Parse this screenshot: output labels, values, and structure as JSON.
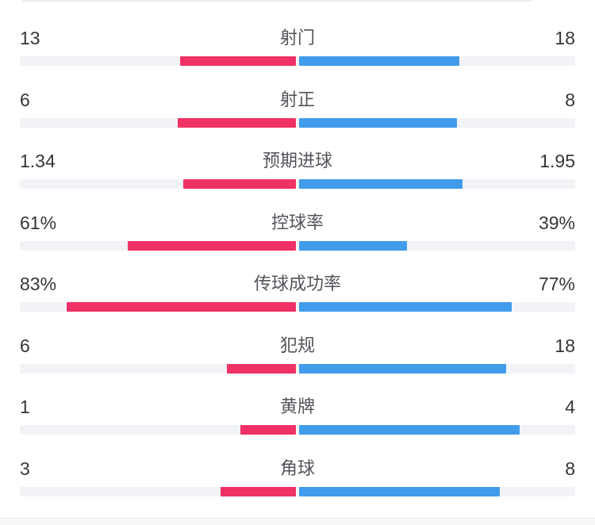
{
  "colors": {
    "home": "#EF3166",
    "away": "#419CEC",
    "track": "#F2F3F6",
    "value_text": "#35363B",
    "label_text": "#54555B",
    "hairline": "#EBECEF",
    "footer": "#F7F8FA"
  },
  "rows": [
    {
      "label": "射门",
      "left": "13",
      "right": "18",
      "left_pct": 41.94,
      "right_pct": 58.06
    },
    {
      "label": "射正",
      "left": "6",
      "right": "8",
      "left_pct": 42.86,
      "right_pct": 57.14
    },
    {
      "label": "预期进球",
      "left": "1.34",
      "right": "1.95",
      "left_pct": 40.73,
      "right_pct": 59.27
    },
    {
      "label": "控球率",
      "left": "61%",
      "right": "39%",
      "left_pct": 61,
      "right_pct": 39
    },
    {
      "label": "传球成功率",
      "left": "83%",
      "right": "77%",
      "left_pct": 83,
      "right_pct": 77
    },
    {
      "label": "犯规",
      "left": "6",
      "right": "18",
      "left_pct": 25,
      "right_pct": 75
    },
    {
      "label": "黄牌",
      "left": "1",
      "right": "4",
      "left_pct": 20,
      "right_pct": 80
    },
    {
      "label": "角球",
      "left": "3",
      "right": "8",
      "left_pct": 27.27,
      "right_pct": 72.73
    }
  ],
  "chart_data": {
    "type": "bar",
    "orientation": "paired-horizontal-from-center",
    "categories": [
      "射门",
      "射正",
      "预期进球",
      "控球率",
      "传球成功率",
      "犯规",
      "黄牌",
      "角球"
    ],
    "series": [
      {
        "name": "left-team",
        "color": "#EF3166",
        "values": [
          13,
          6,
          1.34,
          61,
          83,
          6,
          1,
          3
        ]
      },
      {
        "name": "right-team",
        "color": "#419CEC",
        "values": [
          18,
          8,
          1.95,
          39,
          77,
          18,
          4,
          8
        ]
      }
    ],
    "value_labels": {
      "left": [
        "13",
        "6",
        "1.34",
        "61%",
        "83%",
        "6",
        "1",
        "3"
      ],
      "right": [
        "18",
        "8",
        "1.95",
        "39%",
        "77%",
        "18",
        "4",
        "8"
      ]
    },
    "layout": "each row: left value, centered category label, right value; bar length for count rows = value/(row sum) of half-track, for % rows = percent of half-track; 4px gap at center"
  }
}
